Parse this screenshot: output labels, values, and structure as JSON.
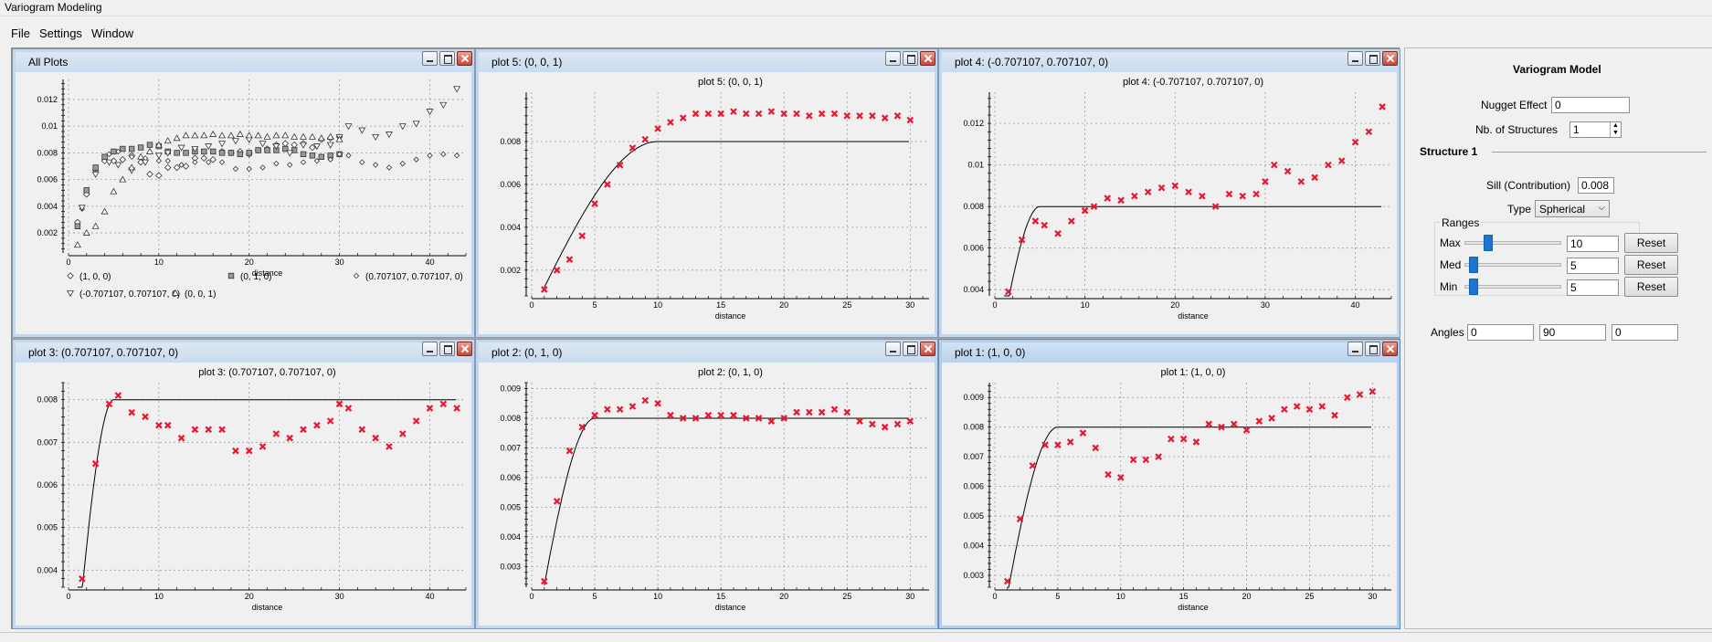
{
  "window": {
    "title": "Variogram Modeling"
  },
  "menu": [
    "File",
    "Settings",
    "Window"
  ],
  "colors": {
    "point_red": "#e8162e",
    "model_line": "#000000",
    "title_bar": "#c9dbee"
  },
  "plots": [
    {
      "id": "all",
      "window_title": "All Plots",
      "chart_data": {
        "type": "scatter",
        "title": "",
        "xlabel": "distance",
        "ylabel": "",
        "xlim": [
          0,
          44
        ],
        "ylim": [
          0.0005,
          0.0135
        ],
        "xticks": [
          0,
          10,
          20,
          30,
          40
        ],
        "yticks": [
          0.002,
          0.004,
          0.006,
          0.008,
          0.01,
          0.012
        ],
        "ytick_labels": [
          "0.002",
          "0.004",
          "0.006",
          "0.008",
          "0.01",
          "0.012"
        ],
        "grid": true,
        "legend": [
          "(1, 0, 0)",
          "(0, 1, 0)",
          "(0.707107, 0.707107, 0)",
          "(-0.707107, 0.707107, 0)",
          "(0, 0, 1)"
        ],
        "series": [
          {
            "name": "(1, 0, 0)",
            "marker": "diamond",
            "x": [
              1,
              2,
              3,
              4,
              5,
              6,
              7,
              8,
              9,
              10,
              11,
              12,
              13,
              14,
              15,
              16,
              17,
              18,
              19,
              20,
              21,
              22,
              23,
              24,
              25,
              26,
              27,
              28,
              29,
              30
            ],
            "y": [
              0.0028,
              0.0049,
              0.0067,
              0.0074,
              0.0074,
              0.0075,
              0.0078,
              0.0073,
              0.0064,
              0.0063,
              0.0069,
              0.0069,
              0.007,
              0.0076,
              0.0076,
              0.0075,
              0.0081,
              0.008,
              0.0081,
              0.0079,
              0.0082,
              0.0083,
              0.0086,
              0.0087,
              0.0086,
              0.0087,
              0.0084,
              0.009,
              0.0091,
              0.0092
            ]
          },
          {
            "name": "(0, 1, 0)",
            "marker": "square",
            "x": [
              1,
              2,
              3,
              4,
              5,
              6,
              7,
              8,
              9,
              10,
              11,
              12,
              13,
              14,
              15,
              16,
              17,
              18,
              19,
              20,
              21,
              22,
              23,
              24,
              25,
              26,
              27,
              28,
              29,
              30
            ],
            "y": [
              0.0025,
              0.0052,
              0.0069,
              0.0077,
              0.0081,
              0.0083,
              0.0083,
              0.0084,
              0.0086,
              0.0085,
              0.0081,
              0.008,
              0.008,
              0.0081,
              0.0081,
              0.0081,
              0.008,
              0.008,
              0.0079,
              0.008,
              0.0082,
              0.0082,
              0.0082,
              0.0083,
              0.0082,
              0.0079,
              0.0078,
              0.0077,
              0.0078,
              0.0079
            ]
          },
          {
            "name": "(0.707107, 0.707107, 0)",
            "marker": "diamond-small",
            "x": [
              1.5,
              3,
              4.5,
              5.5,
              7,
              8.5,
              10,
              11,
              12.5,
              14,
              15.5,
              17,
              18.5,
              20,
              21.5,
              23,
              24.5,
              26,
              27.5,
              29,
              30,
              31,
              32.5,
              34,
              35.5,
              37,
              38.5,
              40,
              41.5,
              43
            ],
            "y": [
              0.0038,
              0.0065,
              0.0079,
              0.0081,
              0.0077,
              0.0076,
              0.0074,
              0.0074,
              0.0071,
              0.0073,
              0.0073,
              0.0073,
              0.0068,
              0.0068,
              0.0069,
              0.0072,
              0.0071,
              0.0073,
              0.0074,
              0.0075,
              0.0079,
              0.0078,
              0.0073,
              0.0071,
              0.0069,
              0.0072,
              0.0075,
              0.0078,
              0.0079,
              0.0078
            ]
          },
          {
            "name": "(-0.707107, 0.707107, 0)",
            "marker": "triangle-down",
            "x": [
              1.5,
              3,
              4.5,
              5.5,
              7,
              8.5,
              10,
              11,
              12.5,
              14,
              15.5,
              17,
              18.5,
              20,
              21.5,
              23,
              24.5,
              26,
              27.5,
              29,
              30,
              31,
              32.5,
              34,
              35.5,
              37,
              38.5,
              40,
              41.5,
              43
            ],
            "y": [
              0.0039,
              0.0064,
              0.0073,
              0.0071,
              0.0067,
              0.0073,
              0.0078,
              0.008,
              0.0084,
              0.0083,
              0.0085,
              0.0087,
              0.0089,
              0.009,
              0.0087,
              0.0085,
              0.008,
              0.0086,
              0.0085,
              0.0086,
              0.0092,
              0.01,
              0.0097,
              0.0092,
              0.0094,
              0.01,
              0.0102,
              0.0111,
              0.0116,
              0.0128
            ]
          },
          {
            "name": "(0, 0, 1)",
            "marker": "triangle-up",
            "x": [
              1,
              2,
              3,
              4,
              5,
              6,
              7,
              8,
              9,
              10,
              11,
              12,
              13,
              14,
              15,
              16,
              17,
              18,
              19,
              20,
              21,
              22,
              23,
              24,
              25,
              26,
              27,
              28,
              29,
              30
            ],
            "y": [
              0.0011,
              0.002,
              0.0025,
              0.0036,
              0.0051,
              0.006,
              0.0069,
              0.0077,
              0.0081,
              0.0086,
              0.0089,
              0.0091,
              0.0093,
              0.0093,
              0.0093,
              0.0094,
              0.0093,
              0.0093,
              0.0094,
              0.0093,
              0.0093,
              0.0092,
              0.0093,
              0.0093,
              0.0092,
              0.0092,
              0.0092,
              0.0091,
              0.0092,
              0.009
            ]
          }
        ]
      }
    },
    {
      "id": "plot5",
      "window_title": "plot 5:  (0, 0, 1)",
      "chart_data": {
        "type": "scatter",
        "title": "plot 5:  (0, 0, 1)",
        "xlabel": "distance",
        "ylabel": "",
        "xlim": [
          0,
          31.5
        ],
        "ylim": [
          0.0008,
          0.0103
        ],
        "xticks": [
          0,
          5,
          10,
          15,
          20,
          25,
          30
        ],
        "yticks": [
          0.002,
          0.004,
          0.006,
          0.008
        ],
        "ytick_labels": [
          "0.002",
          "0.004",
          "0.006",
          "0.008"
        ],
        "grid": true,
        "model": {
          "nugget": 0,
          "sill": 0.008,
          "range": 10,
          "xmax": 30
        },
        "x": [
          1,
          2,
          3,
          4,
          5,
          6,
          7,
          8,
          9,
          10,
          11,
          12,
          13,
          14,
          15,
          16,
          17,
          18,
          19,
          20,
          21,
          22,
          23,
          24,
          25,
          26,
          27,
          28,
          29,
          30
        ],
        "y": [
          0.0011,
          0.002,
          0.0025,
          0.0036,
          0.0051,
          0.006,
          0.0069,
          0.0077,
          0.0081,
          0.0086,
          0.0089,
          0.0091,
          0.0093,
          0.0093,
          0.0093,
          0.0094,
          0.0093,
          0.0093,
          0.0094,
          0.0093,
          0.0093,
          0.0092,
          0.0093,
          0.0093,
          0.0092,
          0.0092,
          0.0092,
          0.0091,
          0.0092,
          0.009
        ]
      }
    },
    {
      "id": "plot4",
      "window_title": "plot 4:  (-0.707107, 0.707107, 0)",
      "chart_data": {
        "type": "scatter",
        "title": "plot 4:  (-0.707107, 0.707107, 0)",
        "xlabel": "distance",
        "ylabel": "",
        "xlim": [
          0,
          44
        ],
        "ylim": [
          0.0037,
          0.0135
        ],
        "xticks": [
          0,
          10,
          20,
          30,
          40
        ],
        "yticks": [
          0.004,
          0.006,
          0.008,
          0.01,
          0.012
        ],
        "ytick_labels": [
          "0.004",
          "0.006",
          "0.008",
          "0.01",
          "0.012"
        ],
        "grid": true,
        "model": {
          "nugget": 0,
          "sill": 0.008,
          "range": 5,
          "xmax": 43
        },
        "x": [
          1.5,
          3,
          4.5,
          5.5,
          7,
          8.5,
          10,
          11,
          12.5,
          14,
          15.5,
          17,
          18.5,
          20,
          21.5,
          23,
          24.5,
          26,
          27.5,
          29,
          30,
          31,
          32.5,
          34,
          35.5,
          37,
          38.5,
          40,
          41.5,
          43
        ],
        "y": [
          0.0039,
          0.0064,
          0.0073,
          0.0071,
          0.0067,
          0.0073,
          0.0078,
          0.008,
          0.0084,
          0.0083,
          0.0085,
          0.0087,
          0.0089,
          0.009,
          0.0087,
          0.0085,
          0.008,
          0.0086,
          0.0085,
          0.0086,
          0.0092,
          0.01,
          0.0097,
          0.0092,
          0.0094,
          0.01,
          0.0102,
          0.0111,
          0.0116,
          0.0128
        ]
      }
    },
    {
      "id": "plot3",
      "window_title": "plot 3:  (0.707107, 0.707107, 0)",
      "chart_data": {
        "type": "scatter",
        "title": "plot 3:  (0.707107, 0.707107, 0)",
        "xlabel": "distance",
        "ylabel": "",
        "xlim": [
          0,
          44
        ],
        "ylim": [
          0.0036,
          0.0084
        ],
        "xticks": [
          0,
          10,
          20,
          30,
          40
        ],
        "yticks": [
          0.004,
          0.005,
          0.006,
          0.007,
          0.008
        ],
        "ytick_labels": [
          "0.004",
          "0.005",
          "0.006",
          "0.007",
          "0.008"
        ],
        "grid": true,
        "model": {
          "nugget": 0,
          "sill": 0.008,
          "range": 5,
          "xmax": 43
        },
        "x": [
          1.5,
          3,
          4.5,
          5.5,
          7,
          8.5,
          10,
          11,
          12.5,
          14,
          15.5,
          17,
          18.5,
          20,
          21.5,
          23,
          24.5,
          26,
          27.5,
          29,
          30,
          31,
          32.5,
          34,
          35.5,
          37,
          38.5,
          40,
          41.5,
          43
        ],
        "y": [
          0.0038,
          0.0065,
          0.0079,
          0.0081,
          0.0077,
          0.0076,
          0.0074,
          0.0074,
          0.0071,
          0.0073,
          0.0073,
          0.0073,
          0.0068,
          0.0068,
          0.0069,
          0.0072,
          0.0071,
          0.0073,
          0.0074,
          0.0075,
          0.0079,
          0.0078,
          0.0073,
          0.0071,
          0.0069,
          0.0072,
          0.0075,
          0.0078,
          0.0079,
          0.0078
        ]
      }
    },
    {
      "id": "plot2",
      "window_title": "plot 2:  (0, 1, 0)",
      "chart_data": {
        "type": "scatter",
        "title": "plot 2:  (0, 1, 0)",
        "xlabel": "distance",
        "ylabel": "",
        "xlim": [
          0,
          31.5
        ],
        "ylim": [
          0.0023,
          0.0092
        ],
        "xticks": [
          0,
          5,
          10,
          15,
          20,
          25,
          30
        ],
        "yticks": [
          0.003,
          0.004,
          0.005,
          0.006,
          0.007,
          0.008,
          0.009
        ],
        "ytick_labels": [
          "0.003",
          "0.004",
          "0.005",
          "0.006",
          "0.007",
          "0.008",
          "0.009"
        ],
        "grid": true,
        "model": {
          "nugget": 0,
          "sill": 0.008,
          "range": 5,
          "xmax": 30
        },
        "x": [
          1,
          2,
          3,
          4,
          5,
          6,
          7,
          8,
          9,
          10,
          11,
          12,
          13,
          14,
          15,
          16,
          17,
          18,
          19,
          20,
          21,
          22,
          23,
          24,
          25,
          26,
          27,
          28,
          29,
          30
        ],
        "y": [
          0.0025,
          0.0052,
          0.0069,
          0.0077,
          0.0081,
          0.0083,
          0.0083,
          0.0084,
          0.0086,
          0.0085,
          0.0081,
          0.008,
          0.008,
          0.0081,
          0.0081,
          0.0081,
          0.008,
          0.008,
          0.0079,
          0.008,
          0.0082,
          0.0082,
          0.0082,
          0.0083,
          0.0082,
          0.0079,
          0.0078,
          0.0077,
          0.0078,
          0.0079
        ]
      }
    },
    {
      "id": "plot1",
      "window_title": "plot 1:  (1, 0, 0)",
      "chart_data": {
        "type": "scatter",
        "title": "plot 1:  (1, 0, 0)",
        "xlabel": "distance",
        "ylabel": "",
        "xlim": [
          0,
          31.5
        ],
        "ylim": [
          0.0026,
          0.0095
        ],
        "xticks": [
          0,
          5,
          10,
          15,
          20,
          25,
          30
        ],
        "yticks": [
          0.003,
          0.004,
          0.005,
          0.006,
          0.007,
          0.008,
          0.009
        ],
        "ytick_labels": [
          "0.003",
          "0.004",
          "0.005",
          "0.006",
          "0.007",
          "0.008",
          "0.009"
        ],
        "grid": true,
        "model": {
          "nugget": 0,
          "sill": 0.008,
          "range": 5,
          "xmax": 30
        },
        "x": [
          1,
          2,
          3,
          4,
          5,
          6,
          7,
          8,
          9,
          10,
          11,
          12,
          13,
          14,
          15,
          16,
          17,
          18,
          19,
          20,
          21,
          22,
          23,
          24,
          25,
          26,
          27,
          28,
          29,
          30
        ],
        "y": [
          0.0028,
          0.0049,
          0.0067,
          0.0074,
          0.0074,
          0.0075,
          0.0078,
          0.0073,
          0.0064,
          0.0063,
          0.0069,
          0.0069,
          0.007,
          0.0076,
          0.0076,
          0.0075,
          0.0081,
          0.008,
          0.0081,
          0.0079,
          0.0082,
          0.0083,
          0.0086,
          0.0087,
          0.0086,
          0.0087,
          0.0084,
          0.009,
          0.0091,
          0.0092
        ]
      }
    }
  ],
  "panel": {
    "title": "Variogram Model",
    "nugget_label": "Nugget Effect",
    "nugget_value": "0",
    "nstruct_label": "Nb. of Structures",
    "nstruct_value": "1",
    "structure_title": "Structure 1",
    "sill_label": "Sill (Contribution)",
    "sill_value": "0.008",
    "type_label": "Type",
    "type_value": "Spherical",
    "ranges_title": "Ranges",
    "max_label": "Max",
    "max_value": "10",
    "max_slider": 0.22,
    "med_label": "Med",
    "med_value": "5",
    "med_slider": 0.05,
    "min_label": "Min",
    "min_value": "5",
    "min_slider": 0.05,
    "reset_label": "Reset",
    "angles_label": "Angles",
    "angle1": "0",
    "angle2": "90",
    "angle3": "0"
  }
}
